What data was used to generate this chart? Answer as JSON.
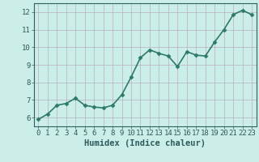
{
  "title": "",
  "xlabel": "Humidex (Indice chaleur)",
  "ylabel": "",
  "x": [
    0,
    1,
    2,
    3,
    4,
    5,
    6,
    7,
    8,
    9,
    10,
    11,
    12,
    13,
    14,
    15,
    16,
    17,
    18,
    19,
    20,
    21,
    22,
    23
  ],
  "y": [
    5.9,
    6.2,
    6.7,
    6.8,
    7.1,
    6.7,
    6.6,
    6.55,
    6.7,
    7.3,
    8.3,
    9.4,
    9.85,
    9.65,
    9.5,
    8.9,
    9.75,
    9.55,
    9.5,
    10.3,
    11.0,
    11.85,
    12.1,
    11.85
  ],
  "line_color": "#2d7a6a",
  "marker": "D",
  "marker_size": 2.5,
  "bg_color": "#cceee8",
  "grid_color": "#b8b0c0",
  "axis_color": "#2d6060",
  "text_color": "#2d5a5a",
  "ylim": [
    5.5,
    12.5
  ],
  "xlim": [
    -0.5,
    23.5
  ],
  "yticks": [
    6,
    7,
    8,
    9,
    10,
    11,
    12
  ],
  "xticks": [
    0,
    1,
    2,
    3,
    4,
    5,
    6,
    7,
    8,
    9,
    10,
    11,
    12,
    13,
    14,
    15,
    16,
    17,
    18,
    19,
    20,
    21,
    22,
    23
  ],
  "tick_fontsize": 6.5,
  "xlabel_fontsize": 7.5,
  "linewidth": 1.2
}
